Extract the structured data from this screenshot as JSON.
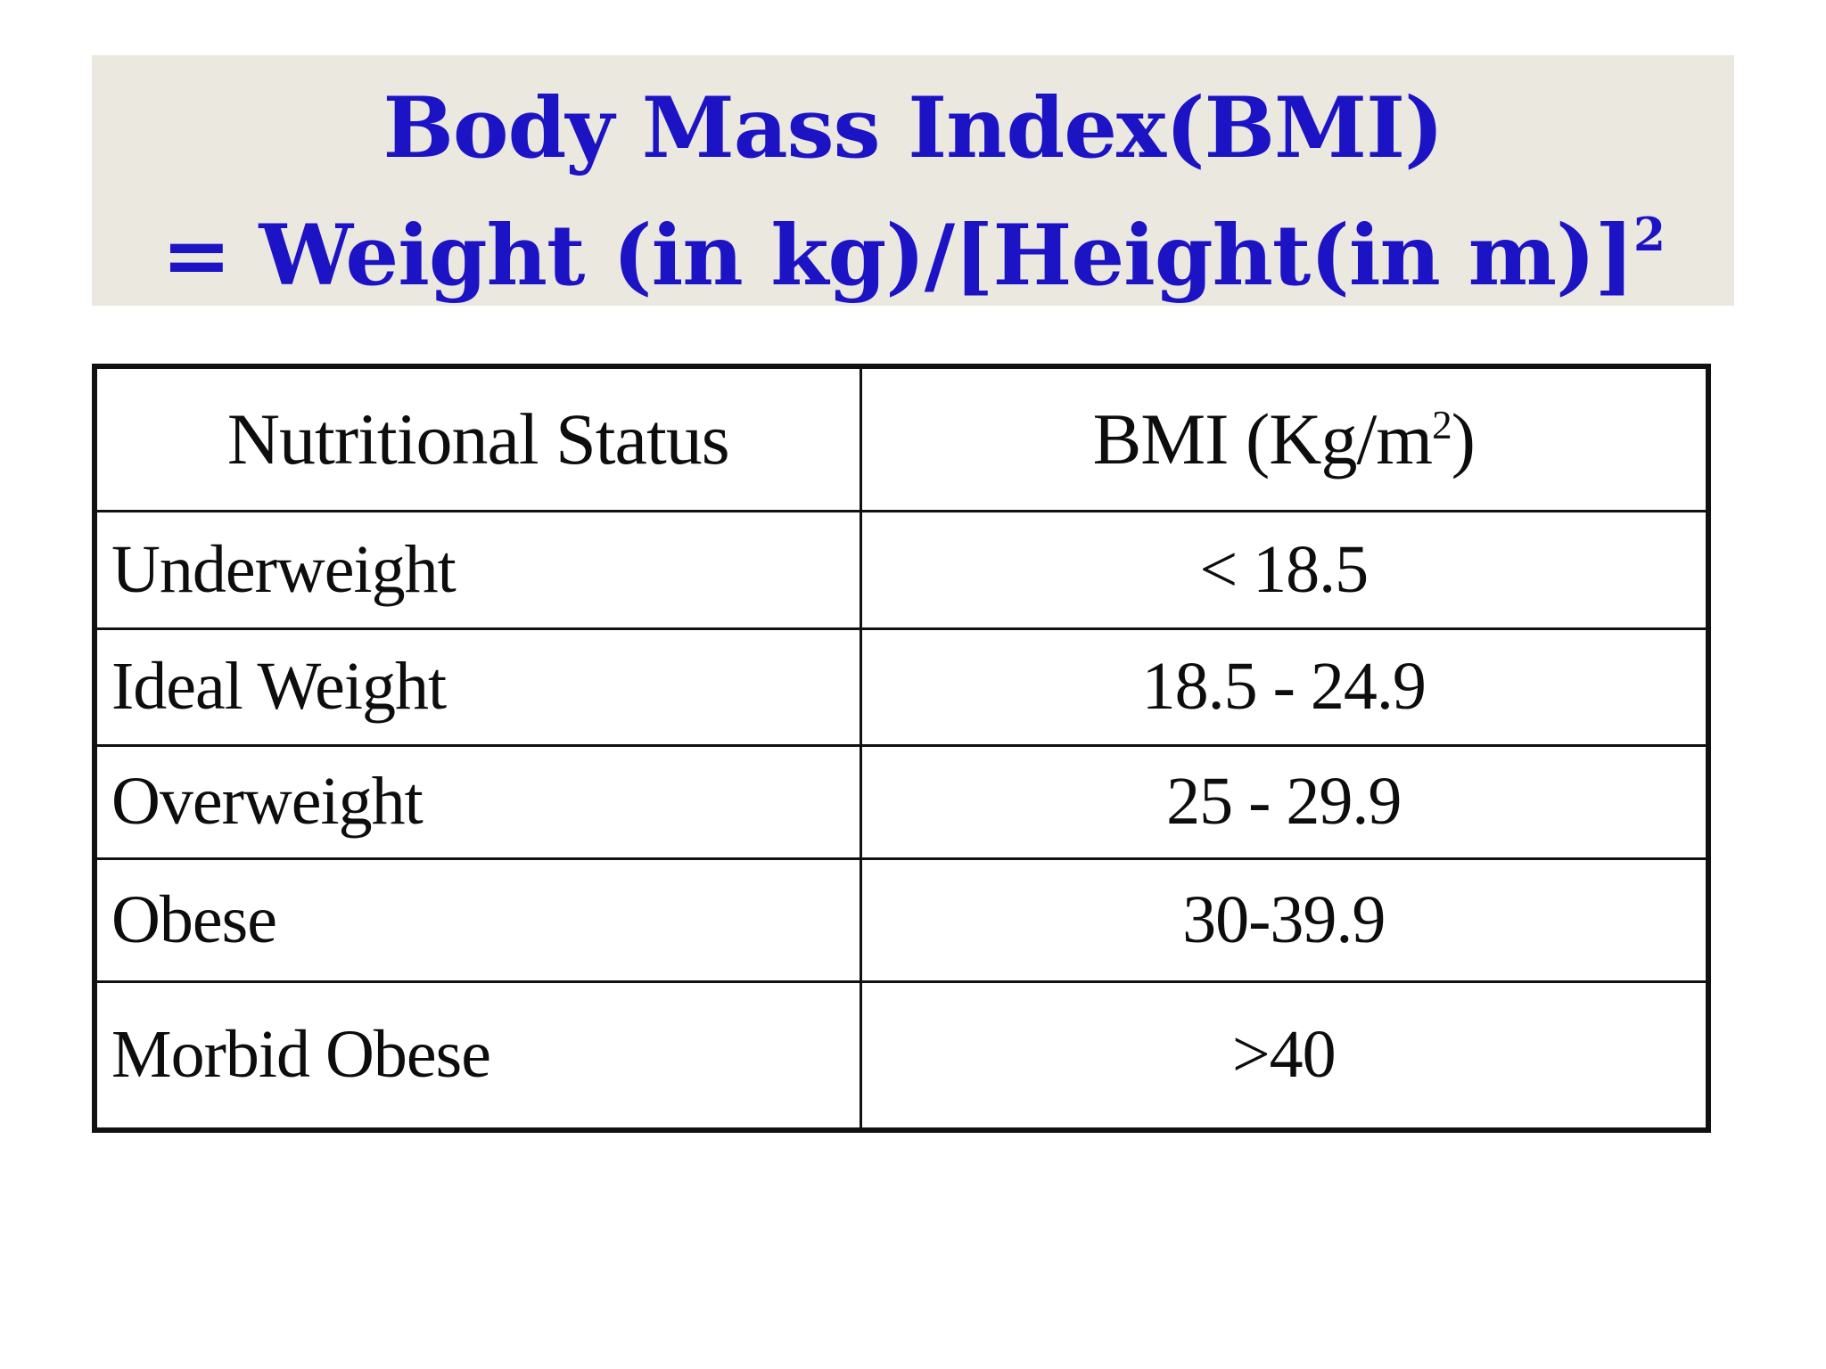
{
  "slide": {
    "background": "#ffffff"
  },
  "title": {
    "banner_bg": "#ebe8df",
    "text_color": "#1c13c4",
    "line1": "Body Mass Index(BMI)",
    "line2_main": "= Weight (in kg)/[Height(in m)]",
    "line2_sup": "2"
  },
  "table": {
    "border_color": "#111111",
    "text_color": "#0d0d0d",
    "header": {
      "col1": "Nutritional Status",
      "col2_main": "BMI (Kg/m",
      "col2_sup": "2",
      "col2_close": ")"
    },
    "rows": [
      {
        "status": "Underweight",
        "bmi": "< 18.5"
      },
      {
        "status": "Ideal Weight",
        "bmi": "18.5 - 24.9"
      },
      {
        "status": "Overweight",
        "bmi": "25 - 29.9"
      },
      {
        "status": "Obese",
        "bmi": "30-39.9"
      },
      {
        "status": "Morbid Obese",
        "bmi": ">40"
      }
    ]
  }
}
